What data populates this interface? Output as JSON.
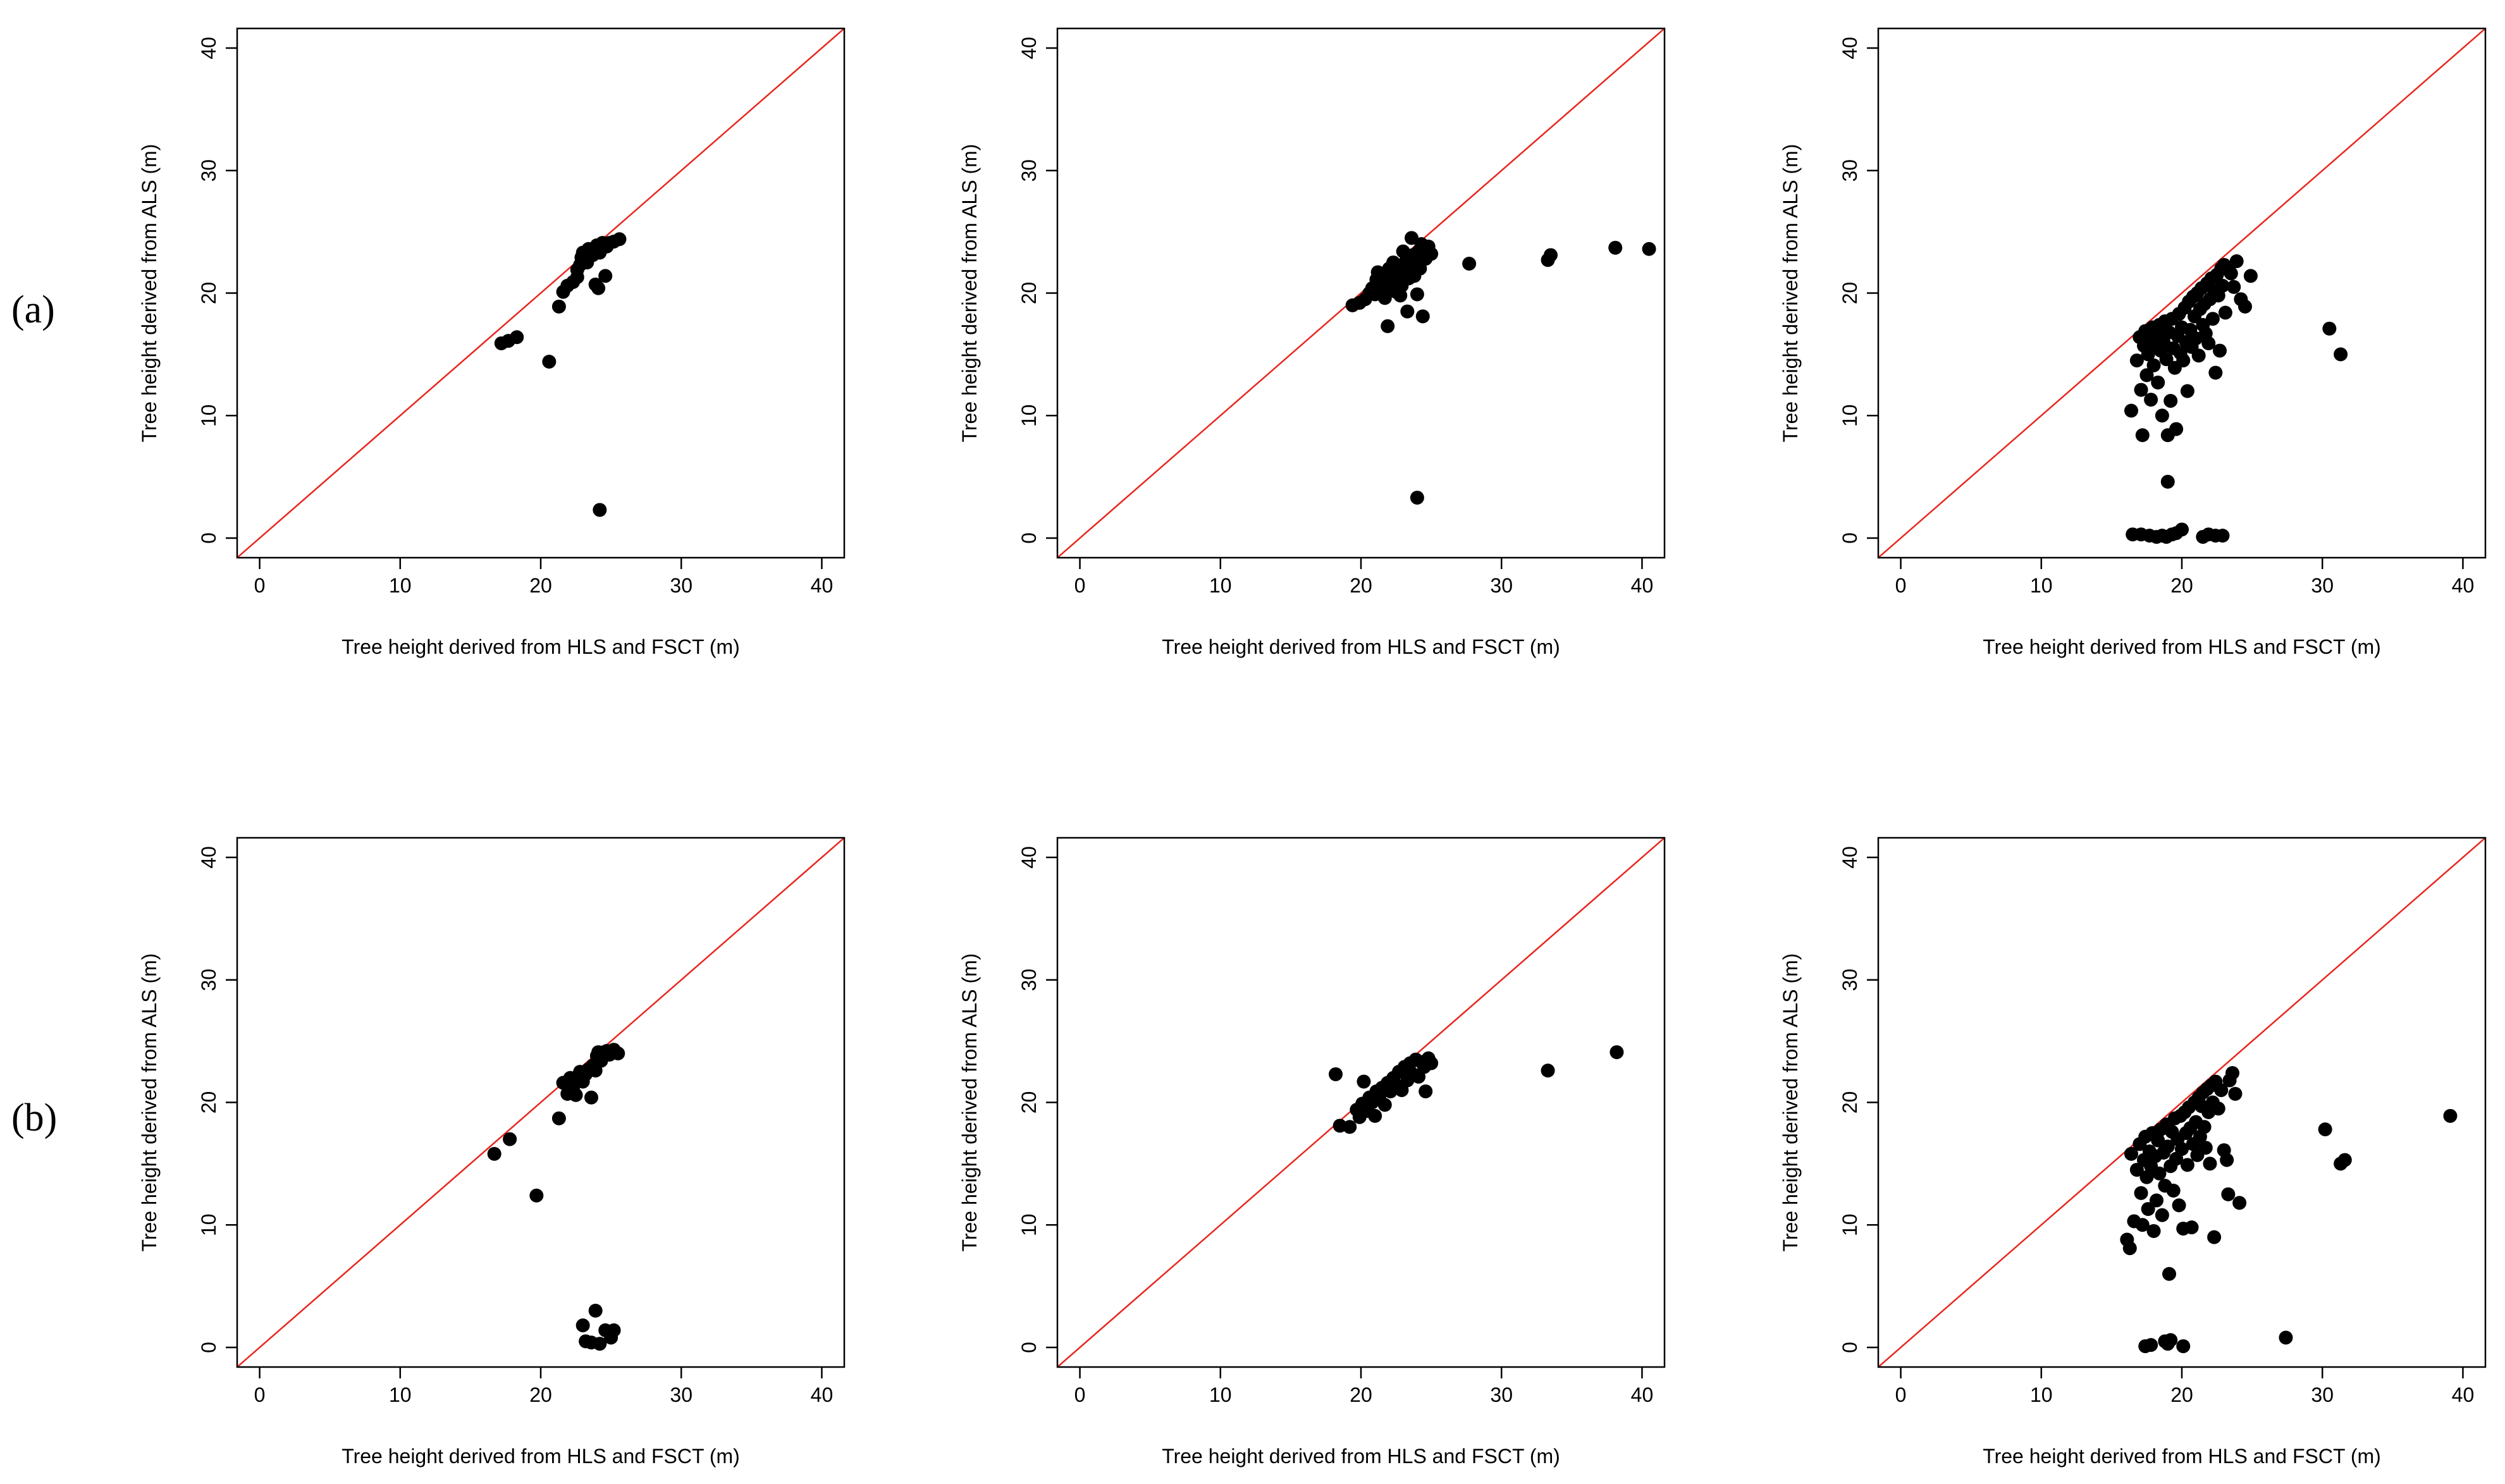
{
  "row_labels": [
    "(a)",
    "(b)"
  ],
  "chart_data": [
    {
      "type": "scatter",
      "row": 0,
      "col": 0,
      "xlabel": "Tree height derived from HLS and FSCT (m)",
      "ylabel": "Tree height derived from ALS (m)",
      "xlim": [
        -1.6,
        41.6
      ],
      "ylim": [
        -1.6,
        41.6
      ],
      "xticks": [
        0,
        10,
        20,
        30,
        40
      ],
      "yticks": [
        0,
        10,
        20,
        30,
        40
      ],
      "reference_line": "y = x",
      "points": [
        [
          17.2,
          15.9
        ],
        [
          17.7,
          16.1
        ],
        [
          18.3,
          16.4
        ],
        [
          20.6,
          14.4
        ],
        [
          21.3,
          18.9
        ],
        [
          21.6,
          20.1
        ],
        [
          21.9,
          20.6
        ],
        [
          22.3,
          20.9
        ],
        [
          22.6,
          21.3
        ],
        [
          22.6,
          21.9
        ],
        [
          22.8,
          22.3
        ],
        [
          22.9,
          22.9
        ],
        [
          23.0,
          23.3
        ],
        [
          23.3,
          22.5
        ],
        [
          23.4,
          23.6
        ],
        [
          23.7,
          23.1
        ],
        [
          23.9,
          20.7
        ],
        [
          24.0,
          23.9
        ],
        [
          24.1,
          20.4
        ],
        [
          24.2,
          23.3
        ],
        [
          24.4,
          24.1
        ],
        [
          24.6,
          21.4
        ],
        [
          24.7,
          23.8
        ],
        [
          24.9,
          24.1
        ],
        [
          25.2,
          24.2
        ],
        [
          25.6,
          24.4
        ],
        [
          24.2,
          2.3
        ]
      ]
    },
    {
      "type": "scatter",
      "row": 0,
      "col": 1,
      "xlabel": "Tree height derived from HLS and FSCT (m)",
      "ylabel": "Tree height derived from ALS (m)",
      "xlim": [
        -1.6,
        41.6
      ],
      "ylim": [
        -1.6,
        41.6
      ],
      "xticks": [
        0,
        10,
        20,
        30,
        40
      ],
      "yticks": [
        0,
        10,
        20,
        30,
        40
      ],
      "reference_line": "y = x",
      "points": [
        [
          19.4,
          19.0
        ],
        [
          19.9,
          19.2
        ],
        [
          20.3,
          19.5
        ],
        [
          20.6,
          20.0
        ],
        [
          20.8,
          20.4
        ],
        [
          21.0,
          19.9
        ],
        [
          21.1,
          21.1
        ],
        [
          21.2,
          21.7
        ],
        [
          21.4,
          20.4
        ],
        [
          21.5,
          21.0
        ],
        [
          21.6,
          20.2
        ],
        [
          21.7,
          19.6
        ],
        [
          21.8,
          21.4
        ],
        [
          21.9,
          17.3
        ],
        [
          22.0,
          22.0
        ],
        [
          22.1,
          20.8
        ],
        [
          22.3,
          22.5
        ],
        [
          22.4,
          21.6
        ],
        [
          22.5,
          20.1
        ],
        [
          22.6,
          21.1
        ],
        [
          22.7,
          22.0
        ],
        [
          22.8,
          19.8
        ],
        [
          22.9,
          20.6
        ],
        [
          23.0,
          23.4
        ],
        [
          23.1,
          21.8
        ],
        [
          23.2,
          22.6
        ],
        [
          23.3,
          18.5
        ],
        [
          23.4,
          21.2
        ],
        [
          23.5,
          22.2
        ],
        [
          23.6,
          24.5
        ],
        [
          23.7,
          23.1
        ],
        [
          23.8,
          21.4
        ],
        [
          23.9,
          22.5
        ],
        [
          24.0,
          19.9
        ],
        [
          24.1,
          23.4
        ],
        [
          24.2,
          22.0
        ],
        [
          24.3,
          24.0
        ],
        [
          24.4,
          18.1
        ],
        [
          24.5,
          23.6
        ],
        [
          24.6,
          22.8
        ],
        [
          24.8,
          23.8
        ],
        [
          25.0,
          23.2
        ],
        [
          27.7,
          22.4
        ],
        [
          33.3,
          22.7
        ],
        [
          33.5,
          23.1
        ],
        [
          38.1,
          23.7
        ],
        [
          40.5,
          23.6
        ],
        [
          24.0,
          3.3
        ]
      ]
    },
    {
      "type": "scatter",
      "row": 0,
      "col": 2,
      "xlabel": "Tree height derived from HLS and FSCT (m)",
      "ylabel": "Tree height derived from ALS (m)",
      "xlim": [
        -1.6,
        41.6
      ],
      "ylim": [
        -1.6,
        41.6
      ],
      "xticks": [
        0,
        10,
        20,
        30,
        40
      ],
      "yticks": [
        0,
        10,
        20,
        30,
        40
      ],
      "reference_line": "y = x",
      "points": [
        [
          16.4,
          10.4
        ],
        [
          16.8,
          14.5
        ],
        [
          17.0,
          16.4
        ],
        [
          17.1,
          12.1
        ],
        [
          17.2,
          8.4
        ],
        [
          17.3,
          15.7
        ],
        [
          17.4,
          16.9
        ],
        [
          17.5,
          13.3
        ],
        [
          17.6,
          15.0
        ],
        [
          17.7,
          16.2
        ],
        [
          17.8,
          11.3
        ],
        [
          17.9,
          17.2
        ],
        [
          18.0,
          14.1
        ],
        [
          18.1,
          15.8
        ],
        [
          18.2,
          16.6
        ],
        [
          18.3,
          12.7
        ],
        [
          18.4,
          17.4
        ],
        [
          18.5,
          15.3
        ],
        [
          18.6,
          10.0
        ],
        [
          18.7,
          16.0
        ],
        [
          18.8,
          17.7
        ],
        [
          18.9,
          14.6
        ],
        [
          19.0,
          8.4
        ],
        [
          19.1,
          16.8
        ],
        [
          19.2,
          11.2
        ],
        [
          19.3,
          17.9
        ],
        [
          19.4,
          15.5
        ],
        [
          19.5,
          13.9
        ],
        [
          19.6,
          8.9
        ],
        [
          19.7,
          16.5
        ],
        [
          19.8,
          18.3
        ],
        [
          19.9,
          15.1
        ],
        [
          20.0,
          17.2
        ],
        [
          20.1,
          14.5
        ],
        [
          20.2,
          18.8
        ],
        [
          20.3,
          16.0
        ],
        [
          20.4,
          12.0
        ],
        [
          20.5,
          19.3
        ],
        [
          20.6,
          17.0
        ],
        [
          20.7,
          15.6
        ],
        [
          20.8,
          19.7
        ],
        [
          20.9,
          18.1
        ],
        [
          21.0,
          16.3
        ],
        [
          21.1,
          20.0
        ],
        [
          21.2,
          14.9
        ],
        [
          21.3,
          18.7
        ],
        [
          21.4,
          20.4
        ],
        [
          21.5,
          17.4
        ],
        [
          21.6,
          19.1
        ],
        [
          21.7,
          16.7
        ],
        [
          21.8,
          20.8
        ],
        [
          21.9,
          15.9
        ],
        [
          22.0,
          19.5
        ],
        [
          22.1,
          21.2
        ],
        [
          22.2,
          17.9
        ],
        [
          22.3,
          20.2
        ],
        [
          22.4,
          13.5
        ],
        [
          22.5,
          21.5
        ],
        [
          22.6,
          19.8
        ],
        [
          22.7,
          15.3
        ],
        [
          22.8,
          22.0
        ],
        [
          22.9,
          20.6
        ],
        [
          23.0,
          22.3
        ],
        [
          23.1,
          18.4
        ],
        [
          23.3,
          21.9
        ],
        [
          23.5,
          21.6
        ],
        [
          23.7,
          20.5
        ],
        [
          23.9,
          22.6
        ],
        [
          24.2,
          19.5
        ],
        [
          24.5,
          18.9
        ],
        [
          24.9,
          21.4
        ],
        [
          30.5,
          17.1
        ],
        [
          31.3,
          15.0
        ],
        [
          19.0,
          4.6
        ],
        [
          16.5,
          0.3
        ],
        [
          17.1,
          0.3
        ],
        [
          17.7,
          0.2
        ],
        [
          18.2,
          0.1
        ],
        [
          18.6,
          0.2
        ],
        [
          18.9,
          0.1
        ],
        [
          19.3,
          0.3
        ],
        [
          19.6,
          0.4
        ],
        [
          20.0,
          0.7
        ],
        [
          21.5,
          0.1
        ],
        [
          21.9,
          0.3
        ],
        [
          22.4,
          0.2
        ],
        [
          22.9,
          0.2
        ]
      ]
    },
    {
      "type": "scatter",
      "row": 1,
      "col": 0,
      "xlabel": "Tree height derived from HLS and FSCT (m)",
      "ylabel": "Tree height derived from ALS (m)",
      "xlim": [
        -1.6,
        41.6
      ],
      "ylim": [
        -1.6,
        41.6
      ],
      "xticks": [
        0,
        10,
        20,
        30,
        40
      ],
      "yticks": [
        0,
        10,
        20,
        30,
        40
      ],
      "reference_line": "y = x",
      "points": [
        [
          16.7,
          15.8
        ],
        [
          17.8,
          17.0
        ],
        [
          19.7,
          12.4
        ],
        [
          21.3,
          18.7
        ],
        [
          21.6,
          21.6
        ],
        [
          21.9,
          20.7
        ],
        [
          22.1,
          22.0
        ],
        [
          22.3,
          21.1
        ],
        [
          22.5,
          20.6
        ],
        [
          22.6,
          22.1
        ],
        [
          22.8,
          22.5
        ],
        [
          23.0,
          21.7
        ],
        [
          23.2,
          22.3
        ],
        [
          23.4,
          22.7
        ],
        [
          23.6,
          20.4
        ],
        [
          23.7,
          23.0
        ],
        [
          23.9,
          22.6
        ],
        [
          24.0,
          23.8
        ],
        [
          24.1,
          24.1
        ],
        [
          24.3,
          23.4
        ],
        [
          24.5,
          24.1
        ],
        [
          24.7,
          24.2
        ],
        [
          24.9,
          23.9
        ],
        [
          25.2,
          24.3
        ],
        [
          25.5,
          24.0
        ],
        [
          23.0,
          1.8
        ],
        [
          23.2,
          0.5
        ],
        [
          23.6,
          0.4
        ],
        [
          23.9,
          3.0
        ],
        [
          24.2,
          0.3
        ],
        [
          24.6,
          1.4
        ],
        [
          25.0,
          0.8
        ],
        [
          25.2,
          1.4
        ]
      ]
    },
    {
      "type": "scatter",
      "row": 1,
      "col": 1,
      "xlabel": "Tree height derived from HLS and FSCT (m)",
      "ylabel": "Tree height derived from ALS (m)",
      "xlim": [
        -1.6,
        41.6
      ],
      "ylim": [
        -1.6,
        41.6
      ],
      "xticks": [
        0,
        10,
        20,
        30,
        40
      ],
      "yticks": [
        0,
        10,
        20,
        30,
        40
      ],
      "reference_line": "y = x",
      "points": [
        [
          18.2,
          22.3
        ],
        [
          18.5,
          18.1
        ],
        [
          19.2,
          18.0
        ],
        [
          19.7,
          19.4
        ],
        [
          19.9,
          18.8
        ],
        [
          20.1,
          19.9
        ],
        [
          20.2,
          21.7
        ],
        [
          20.4,
          19.3
        ],
        [
          20.6,
          20.4
        ],
        [
          20.8,
          20.0
        ],
        [
          21.0,
          18.9
        ],
        [
          21.1,
          20.9
        ],
        [
          21.3,
          20.4
        ],
        [
          21.5,
          21.2
        ],
        [
          21.7,
          19.8
        ],
        [
          21.9,
          21.6
        ],
        [
          22.1,
          20.9
        ],
        [
          22.3,
          22.0
        ],
        [
          22.5,
          21.4
        ],
        [
          22.7,
          22.5
        ],
        [
          22.9,
          21.0
        ],
        [
          23.1,
          22.9
        ],
        [
          23.3,
          21.8
        ],
        [
          23.5,
          23.2
        ],
        [
          23.7,
          22.3
        ],
        [
          23.9,
          23.5
        ],
        [
          24.1,
          22.1
        ],
        [
          24.3,
          23.3
        ],
        [
          24.5,
          22.9
        ],
        [
          24.6,
          20.9
        ],
        [
          24.8,
          23.6
        ],
        [
          25.0,
          23.2
        ],
        [
          33.3,
          22.6
        ],
        [
          38.2,
          24.1
        ]
      ]
    },
    {
      "type": "scatter",
      "row": 1,
      "col": 2,
      "xlabel": "Tree height derived from HLS and FSCT (m)",
      "ylabel": "Tree height derived from ALS (m)",
      "xlim": [
        -1.6,
        41.6
      ],
      "ylim": [
        -1.6,
        41.6
      ],
      "xticks": [
        0,
        10,
        20,
        30,
        40
      ],
      "yticks": [
        0,
        10,
        20,
        30,
        40
      ],
      "reference_line": "y = x",
      "points": [
        [
          16.1,
          8.8
        ],
        [
          16.3,
          8.1
        ],
        [
          16.4,
          15.8
        ],
        [
          16.6,
          10.3
        ],
        [
          16.8,
          14.5
        ],
        [
          17.0,
          16.6
        ],
        [
          17.1,
          12.6
        ],
        [
          17.2,
          10.0
        ],
        [
          17.3,
          15.3
        ],
        [
          17.4,
          17.2
        ],
        [
          17.5,
          13.9
        ],
        [
          17.6,
          11.3
        ],
        [
          17.7,
          16.0
        ],
        [
          17.8,
          14.8
        ],
        [
          17.9,
          17.5
        ],
        [
          18.0,
          9.5
        ],
        [
          18.1,
          15.6
        ],
        [
          18.2,
          12.0
        ],
        [
          18.3,
          16.9
        ],
        [
          18.4,
          14.2
        ],
        [
          18.5,
          17.8
        ],
        [
          18.6,
          10.8
        ],
        [
          18.7,
          15.9
        ],
        [
          18.8,
          13.2
        ],
        [
          18.9,
          18.2
        ],
        [
          19.0,
          16.4
        ],
        [
          19.1,
          6.0
        ],
        [
          19.2,
          14.8
        ],
        [
          19.3,
          17.6
        ],
        [
          19.4,
          12.8
        ],
        [
          19.5,
          18.7
        ],
        [
          19.6,
          15.4
        ],
        [
          19.7,
          17.0
        ],
        [
          19.8,
          11.6
        ],
        [
          19.9,
          18.9
        ],
        [
          20.0,
          16.2
        ],
        [
          20.1,
          9.7
        ],
        [
          20.2,
          19.2
        ],
        [
          20.3,
          17.5
        ],
        [
          20.4,
          14.9
        ],
        [
          20.5,
          19.6
        ],
        [
          20.6,
          17.9
        ],
        [
          20.7,
          9.8
        ],
        [
          20.8,
          16.6
        ],
        [
          20.9,
          20.0
        ],
        [
          21.0,
          18.4
        ],
        [
          21.1,
          15.7
        ],
        [
          21.2,
          20.4
        ],
        [
          21.3,
          17.2
        ],
        [
          21.4,
          19.7
        ],
        [
          21.5,
          20.8
        ],
        [
          21.6,
          18.0
        ],
        [
          21.7,
          16.3
        ],
        [
          21.8,
          21.1
        ],
        [
          21.9,
          19.2
        ],
        [
          22.0,
          15.0
        ],
        [
          22.1,
          21.4
        ],
        [
          22.2,
          20.0
        ],
        [
          22.3,
          9.0
        ],
        [
          22.4,
          21.7
        ],
        [
          22.6,
          19.5
        ],
        [
          22.8,
          21.0
        ],
        [
          23.0,
          16.1
        ],
        [
          23.2,
          15.3
        ],
        [
          23.3,
          12.5
        ],
        [
          23.4,
          21.8
        ],
        [
          23.6,
          22.4
        ],
        [
          23.8,
          20.7
        ],
        [
          24.1,
          11.8
        ],
        [
          30.2,
          17.8
        ],
        [
          31.3,
          15.0
        ],
        [
          31.6,
          15.3
        ],
        [
          39.1,
          18.9
        ],
        [
          17.4,
          0.1
        ],
        [
          17.8,
          0.2
        ],
        [
          18.8,
          0.5
        ],
        [
          19.0,
          0.3
        ],
        [
          19.2,
          0.6
        ],
        [
          20.1,
          0.1
        ],
        [
          27.4,
          0.8
        ]
      ]
    }
  ]
}
